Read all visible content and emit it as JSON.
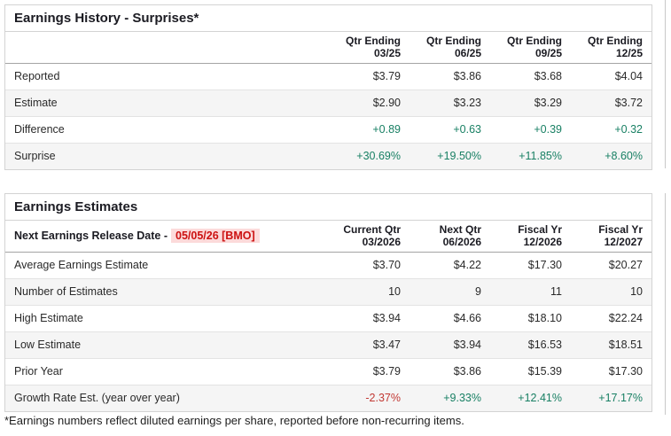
{
  "colors": {
    "positive": "#198064",
    "negative": "#c23934",
    "alert_red": "#cc1111",
    "alert_bg": "#fcdada",
    "row_alt_bg": "#f5f5f5"
  },
  "history": {
    "title": "Earnings History - Surprises*",
    "columns": [
      {
        "line1": "Qtr Ending",
        "line2": "03/25"
      },
      {
        "line1": "Qtr Ending",
        "line2": "06/25"
      },
      {
        "line1": "Qtr Ending",
        "line2": "09/25"
      },
      {
        "line1": "Qtr Ending",
        "line2": "12/25"
      }
    ],
    "rows": [
      {
        "label": "Reported",
        "values": [
          "$3.79",
          "$3.86",
          "$3.68",
          "$4.04"
        ],
        "tone": "neutral"
      },
      {
        "label": "Estimate",
        "values": [
          "$2.90",
          "$3.23",
          "$3.29",
          "$3.72"
        ],
        "tone": "neutral"
      },
      {
        "label": "Difference",
        "values": [
          "+0.89",
          "+0.63",
          "+0.39",
          "+0.32"
        ],
        "tone": "positive"
      },
      {
        "label": "Surprise",
        "values": [
          "+30.69%",
          "+19.50%",
          "+11.85%",
          "+8.60%"
        ],
        "tone": "positive"
      }
    ]
  },
  "estimates": {
    "title": "Earnings Estimates",
    "release_label": "Next Earnings Release Date -",
    "release_date": "05/05/26 [BMO]",
    "columns": [
      {
        "line1": "Current Qtr",
        "line2": "03/2026"
      },
      {
        "line1": "Next Qtr",
        "line2": "06/2026"
      },
      {
        "line1": "Fiscal Yr",
        "line2": "12/2026"
      },
      {
        "line1": "Fiscal Yr",
        "line2": "12/2027"
      }
    ],
    "rows": [
      {
        "label": "Average Earnings Estimate",
        "values": [
          "$3.70",
          "$4.22",
          "$17.30",
          "$20.27"
        ],
        "tone": "neutral"
      },
      {
        "label": "Number of Estimates",
        "values": [
          "10",
          "9",
          "11",
          "10"
        ],
        "tone": "neutral"
      },
      {
        "label": "High Estimate",
        "values": [
          "$3.94",
          "$4.66",
          "$18.10",
          "$22.24"
        ],
        "tone": "neutral"
      },
      {
        "label": "Low Estimate",
        "values": [
          "$3.47",
          "$3.94",
          "$16.53",
          "$18.51"
        ],
        "tone": "neutral"
      },
      {
        "label": "Prior Year",
        "values": [
          "$3.79",
          "$3.86",
          "$15.39",
          "$17.30"
        ],
        "tone": "neutral"
      },
      {
        "label": "Growth Rate Est. (year over year)",
        "values": [
          "-2.37%",
          "+9.33%",
          "+12.41%",
          "+17.17%"
        ],
        "tones": [
          "negative",
          "positive",
          "positive",
          "positive"
        ]
      }
    ]
  },
  "page": {
    "footnote": "*Earnings numbers reflect diluted earnings per share, reported before non-recurring items."
  }
}
